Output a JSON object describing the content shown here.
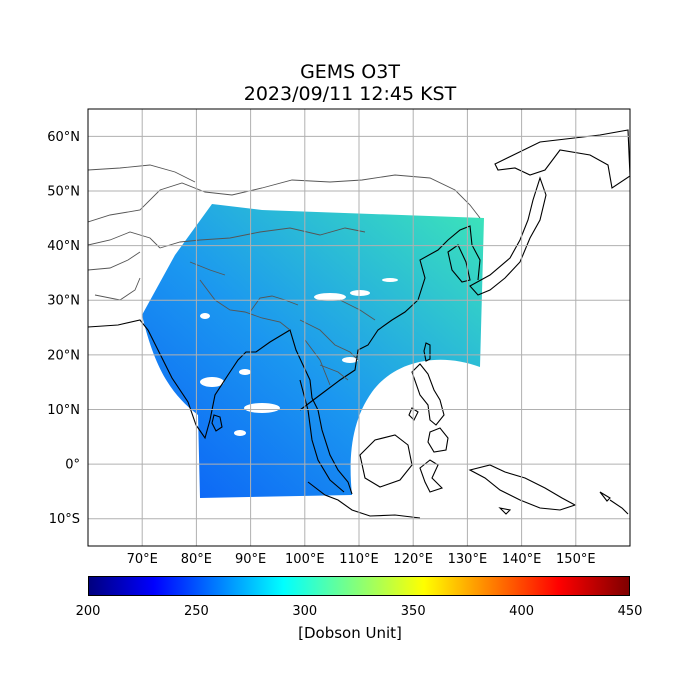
{
  "title": {
    "line1": "GEMS O3T",
    "line2": "2023/09/11 12:45 KST"
  },
  "map": {
    "lon_range": [
      60,
      160
    ],
    "lat_range": [
      -15,
      65
    ],
    "lon_ticks": [
      {
        "value": 70,
        "label": "70°E"
      },
      {
        "value": 80,
        "label": "80°E"
      },
      {
        "value": 90,
        "label": "90°E"
      },
      {
        "value": 100,
        "label": "100°E"
      },
      {
        "value": 110,
        "label": "110°E"
      },
      {
        "value": 120,
        "label": "120°E"
      },
      {
        "value": 130,
        "label": "130°E"
      },
      {
        "value": 140,
        "label": "140°E"
      },
      {
        "value": 150,
        "label": "150°E"
      }
    ],
    "lat_ticks": [
      {
        "value": 60,
        "label": "60°N"
      },
      {
        "value": 50,
        "label": "50°N"
      },
      {
        "value": 40,
        "label": "40°N"
      },
      {
        "value": 30,
        "label": "30°N"
      },
      {
        "value": 20,
        "label": "20°N"
      },
      {
        "value": 10,
        "label": "10°N"
      },
      {
        "value": 0,
        "label": "0°"
      },
      {
        "value": -10,
        "label": "10°S"
      }
    ],
    "grid": true,
    "field_colors": {
      "low": "#0a5ef7",
      "mid": "#1b97f0",
      "high": "#3de6b8"
    }
  },
  "colorbar": {
    "min": 200,
    "max": 450,
    "ticks": [
      {
        "value": 200,
        "label": "200"
      },
      {
        "value": 250,
        "label": "250"
      },
      {
        "value": 300,
        "label": "300"
      },
      {
        "value": 350,
        "label": "350"
      },
      {
        "value": 400,
        "label": "400"
      },
      {
        "value": 450,
        "label": "450"
      }
    ],
    "label": "[Dobson Unit]",
    "colormap": "jet"
  }
}
